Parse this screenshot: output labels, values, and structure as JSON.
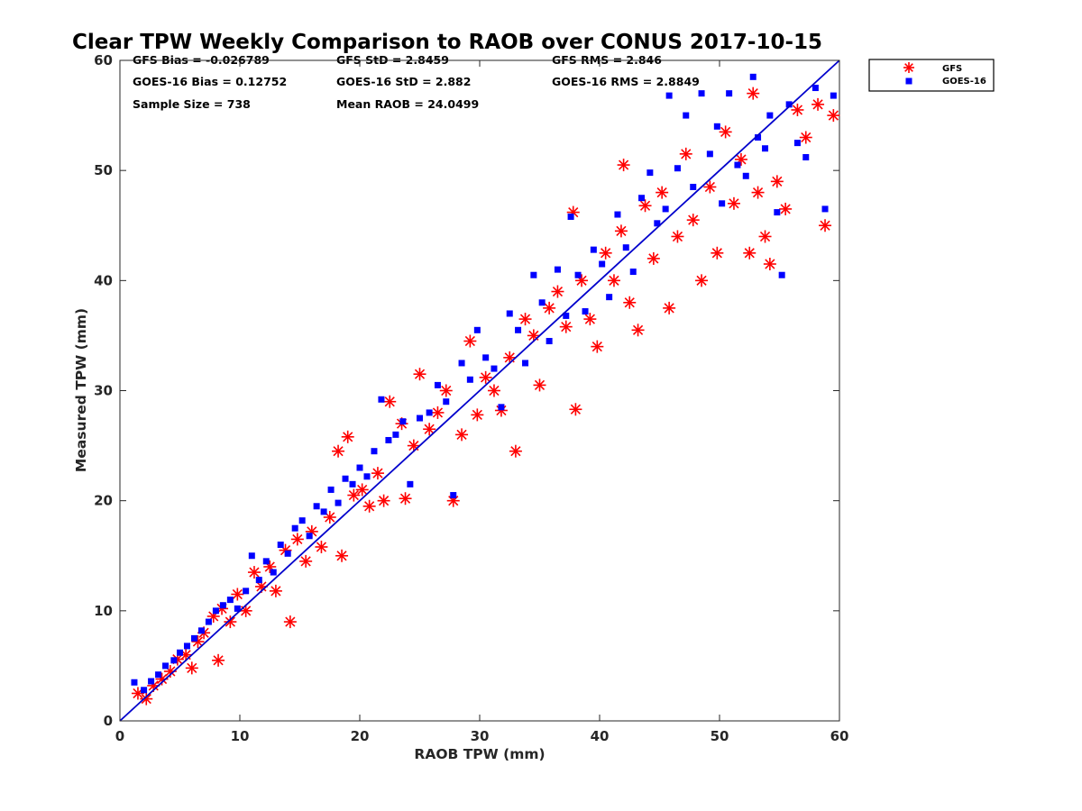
{
  "chart_data": {
    "type": "scatter",
    "title": "Clear TPW Weekly Comparison to RAOB over CONUS 2017-10-15",
    "xlabel": "RAOB TPW (mm)",
    "ylabel": "Measured TPW (mm)",
    "xlim": [
      0,
      60
    ],
    "ylim": [
      0,
      60
    ],
    "xticks": [
      "0",
      "10",
      "20",
      "30",
      "40",
      "50",
      "60"
    ],
    "yticks": [
      "0",
      "10",
      "20",
      "30",
      "40",
      "50",
      "60"
    ],
    "grid": false,
    "legend_position": "outside top-right",
    "stats": [
      [
        "GFS Bias = -0.026789",
        "GFS StD = 2.8459",
        "GFS RMS = 2.846"
      ],
      [
        "GOES-16 Bias = 0.12752",
        "GOES-16 StD = 2.882",
        "GOES-16 RMS = 2.8849"
      ],
      [
        "Sample Size = 738",
        "Mean RAOB = 24.0499",
        ""
      ]
    ],
    "reference_line": {
      "from": [
        0,
        0
      ],
      "to": [
        60,
        60
      ],
      "color": "#0000cc"
    },
    "series": [
      {
        "name": "GFS",
        "marker": "asterisk",
        "color": "#ff0000",
        "points": [
          [
            1.5,
            2.5
          ],
          [
            2.2,
            2.0
          ],
          [
            2.8,
            3.2
          ],
          [
            3.5,
            3.8
          ],
          [
            4.2,
            4.5
          ],
          [
            4.8,
            5.6
          ],
          [
            5.5,
            6.0
          ],
          [
            6.0,
            4.8
          ],
          [
            6.5,
            7.2
          ],
          [
            7.0,
            8.0
          ],
          [
            7.8,
            9.5
          ],
          [
            8.2,
            5.5
          ],
          [
            8.5,
            10.2
          ],
          [
            9.2,
            9.0
          ],
          [
            9.8,
            11.5
          ],
          [
            10.5,
            10.0
          ],
          [
            11.2,
            13.5
          ],
          [
            11.8,
            12.2
          ],
          [
            12.5,
            14.0
          ],
          [
            13.0,
            11.8
          ],
          [
            13.8,
            15.5
          ],
          [
            14.2,
            9.0
          ],
          [
            14.8,
            16.5
          ],
          [
            15.5,
            14.5
          ],
          [
            16.0,
            17.2
          ],
          [
            16.8,
            15.8
          ],
          [
            17.5,
            18.5
          ],
          [
            18.2,
            24.5
          ],
          [
            18.5,
            15.0
          ],
          [
            19.0,
            25.8
          ],
          [
            19.5,
            20.5
          ],
          [
            20.2,
            21.0
          ],
          [
            20.8,
            19.5
          ],
          [
            21.5,
            22.5
          ],
          [
            22.0,
            20.0
          ],
          [
            22.5,
            29.0
          ],
          [
            23.5,
            27.0
          ],
          [
            23.8,
            20.2
          ],
          [
            24.5,
            25.0
          ],
          [
            25.0,
            31.5
          ],
          [
            25.8,
            26.5
          ],
          [
            26.5,
            28.0
          ],
          [
            27.2,
            30.0
          ],
          [
            27.8,
            20.0
          ],
          [
            28.5,
            26.0
          ],
          [
            29.2,
            34.5
          ],
          [
            29.8,
            27.8
          ],
          [
            30.5,
            31.2
          ],
          [
            31.2,
            30.0
          ],
          [
            31.8,
            28.2
          ],
          [
            32.5,
            33.0
          ],
          [
            33.0,
            24.5
          ],
          [
            33.8,
            36.5
          ],
          [
            34.5,
            35.0
          ],
          [
            35.0,
            30.5
          ],
          [
            35.8,
            37.5
          ],
          [
            36.5,
            39.0
          ],
          [
            37.2,
            35.8
          ],
          [
            37.8,
            46.2
          ],
          [
            38.0,
            28.3
          ],
          [
            38.5,
            40.0
          ],
          [
            39.2,
            36.5
          ],
          [
            39.8,
            34.0
          ],
          [
            40.5,
            42.5
          ],
          [
            41.2,
            40.0
          ],
          [
            41.8,
            44.5
          ],
          [
            42.0,
            50.5
          ],
          [
            42.5,
            38.0
          ],
          [
            43.2,
            35.5
          ],
          [
            43.8,
            46.8
          ],
          [
            44.5,
            42.0
          ],
          [
            45.2,
            48.0
          ],
          [
            45.8,
            37.5
          ],
          [
            46.5,
            44.0
          ],
          [
            47.2,
            51.5
          ],
          [
            47.8,
            45.5
          ],
          [
            48.5,
            40.0
          ],
          [
            49.2,
            48.5
          ],
          [
            49.8,
            42.5
          ],
          [
            50.5,
            53.5
          ],
          [
            51.2,
            47.0
          ],
          [
            51.8,
            51.0
          ],
          [
            52.5,
            42.5
          ],
          [
            52.8,
            57.0
          ],
          [
            53.2,
            48.0
          ],
          [
            53.8,
            44.0
          ],
          [
            54.2,
            41.5
          ],
          [
            54.8,
            49.0
          ],
          [
            55.5,
            46.5
          ],
          [
            56.5,
            55.5
          ],
          [
            57.2,
            53.0
          ],
          [
            58.2,
            56.0
          ],
          [
            58.8,
            45.0
          ],
          [
            59.5,
            55.0
          ]
        ]
      },
      {
        "name": "GOES-16",
        "marker": "square",
        "color": "#0000ff",
        "points": [
          [
            1.2,
            3.5
          ],
          [
            2.0,
            2.8
          ],
          [
            2.6,
            3.6
          ],
          [
            3.2,
            4.2
          ],
          [
            3.8,
            5.0
          ],
          [
            4.5,
            5.5
          ],
          [
            5.0,
            6.2
          ],
          [
            5.6,
            6.8
          ],
          [
            6.2,
            7.5
          ],
          [
            6.8,
            8.2
          ],
          [
            7.4,
            9.0
          ],
          [
            8.0,
            10.0
          ],
          [
            8.6,
            10.5
          ],
          [
            9.2,
            11.0
          ],
          [
            9.8,
            10.2
          ],
          [
            10.5,
            11.8
          ],
          [
            11.0,
            15.0
          ],
          [
            11.6,
            12.8
          ],
          [
            12.2,
            14.5
          ],
          [
            12.8,
            13.5
          ],
          [
            13.4,
            16.0
          ],
          [
            14.0,
            15.2
          ],
          [
            14.6,
            17.5
          ],
          [
            15.2,
            18.2
          ],
          [
            15.8,
            16.8
          ],
          [
            16.4,
            19.5
          ],
          [
            17.0,
            19.0
          ],
          [
            17.6,
            21.0
          ],
          [
            18.2,
            19.8
          ],
          [
            18.8,
            22.0
          ],
          [
            19.4,
            21.5
          ],
          [
            20.0,
            23.0
          ],
          [
            20.6,
            22.2
          ],
          [
            21.2,
            24.5
          ],
          [
            21.8,
            29.2
          ],
          [
            22.4,
            25.5
          ],
          [
            23.0,
            26.0
          ],
          [
            23.6,
            27.2
          ],
          [
            24.2,
            21.5
          ],
          [
            25.0,
            27.5
          ],
          [
            25.8,
            28.0
          ],
          [
            26.5,
            30.5
          ],
          [
            27.2,
            29.0
          ],
          [
            27.8,
            20.5
          ],
          [
            28.5,
            32.5
          ],
          [
            29.2,
            31.0
          ],
          [
            29.8,
            35.5
          ],
          [
            30.5,
            33.0
          ],
          [
            31.2,
            32.0
          ],
          [
            31.8,
            28.5
          ],
          [
            32.5,
            37.0
          ],
          [
            33.2,
            35.5
          ],
          [
            33.8,
            32.5
          ],
          [
            34.5,
            40.5
          ],
          [
            35.2,
            38.0
          ],
          [
            35.8,
            34.5
          ],
          [
            36.5,
            41.0
          ],
          [
            37.2,
            36.8
          ],
          [
            37.6,
            45.8
          ],
          [
            38.2,
            40.5
          ],
          [
            38.8,
            37.2
          ],
          [
            39.5,
            42.8
          ],
          [
            40.2,
            41.5
          ],
          [
            40.8,
            38.5
          ],
          [
            41.5,
            46.0
          ],
          [
            42.2,
            43.0
          ],
          [
            42.8,
            40.8
          ],
          [
            43.5,
            47.5
          ],
          [
            44.2,
            49.8
          ],
          [
            44.8,
            45.2
          ],
          [
            45.5,
            46.5
          ],
          [
            45.8,
            56.8
          ],
          [
            46.5,
            50.2
          ],
          [
            47.2,
            55.0
          ],
          [
            47.8,
            48.5
          ],
          [
            48.5,
            57.0
          ],
          [
            49.2,
            51.5
          ],
          [
            49.8,
            54.0
          ],
          [
            50.2,
            47.0
          ],
          [
            50.8,
            57.0
          ],
          [
            51.5,
            50.5
          ],
          [
            52.2,
            49.5
          ],
          [
            52.8,
            58.5
          ],
          [
            53.2,
            53.0
          ],
          [
            53.8,
            52.0
          ],
          [
            54.2,
            55.0
          ],
          [
            54.8,
            46.2
          ],
          [
            55.2,
            40.5
          ],
          [
            55.8,
            56.0
          ],
          [
            56.5,
            52.5
          ],
          [
            57.2,
            51.2
          ],
          [
            58.0,
            57.5
          ],
          [
            58.8,
            46.5
          ],
          [
            59.5,
            56.8
          ]
        ]
      }
    ]
  }
}
